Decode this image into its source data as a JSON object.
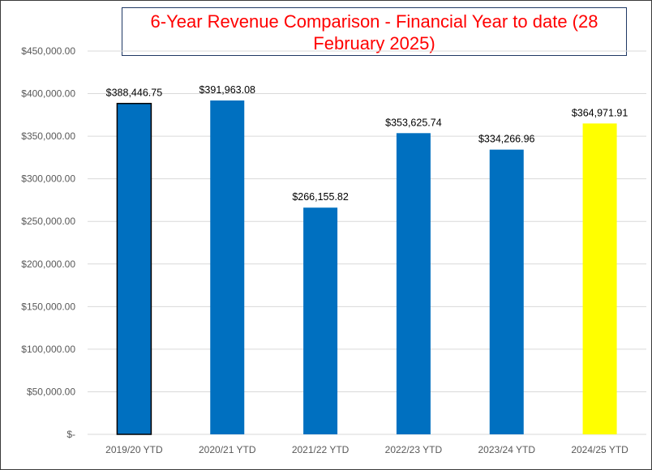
{
  "chart_data": {
    "type": "bar",
    "title": "6-Year Revenue Comparison - Financial Year to date (28 February 2025)",
    "categories": [
      "2019/20 YTD",
      "2020/21 YTD",
      "2021/22 YTD",
      "2022/23 YTD",
      "2023/24 YTD",
      "2024/25 YTD"
    ],
    "values": [
      388446.75,
      391963.08,
      266155.82,
      353625.74,
      334266.96,
      364971.91
    ],
    "data_labels": [
      "$388,446.75",
      "$391,963.08",
      "$266,155.82",
      "$353,625.74",
      "$334,266.96",
      "$364,971.91"
    ],
    "bar_colors": [
      "#0070c0",
      "#0070c0",
      "#0070c0",
      "#0070c0",
      "#0070c0",
      "#ffff00"
    ],
    "first_bar_outline": "#000000",
    "ylim": [
      0,
      450000
    ],
    "yticks": [
      0,
      50000,
      100000,
      150000,
      200000,
      250000,
      300000,
      350000,
      400000,
      450000
    ],
    "ytick_labels": [
      "$-",
      "$50,000.00",
      "$100,000.00",
      "$150,000.00",
      "$200,000.00",
      "$250,000.00",
      "$300,000.00",
      "$350,000.00",
      "$400,000.00",
      "$450,000.00"
    ],
    "grid": true,
    "xlabel": "",
    "ylabel": ""
  }
}
